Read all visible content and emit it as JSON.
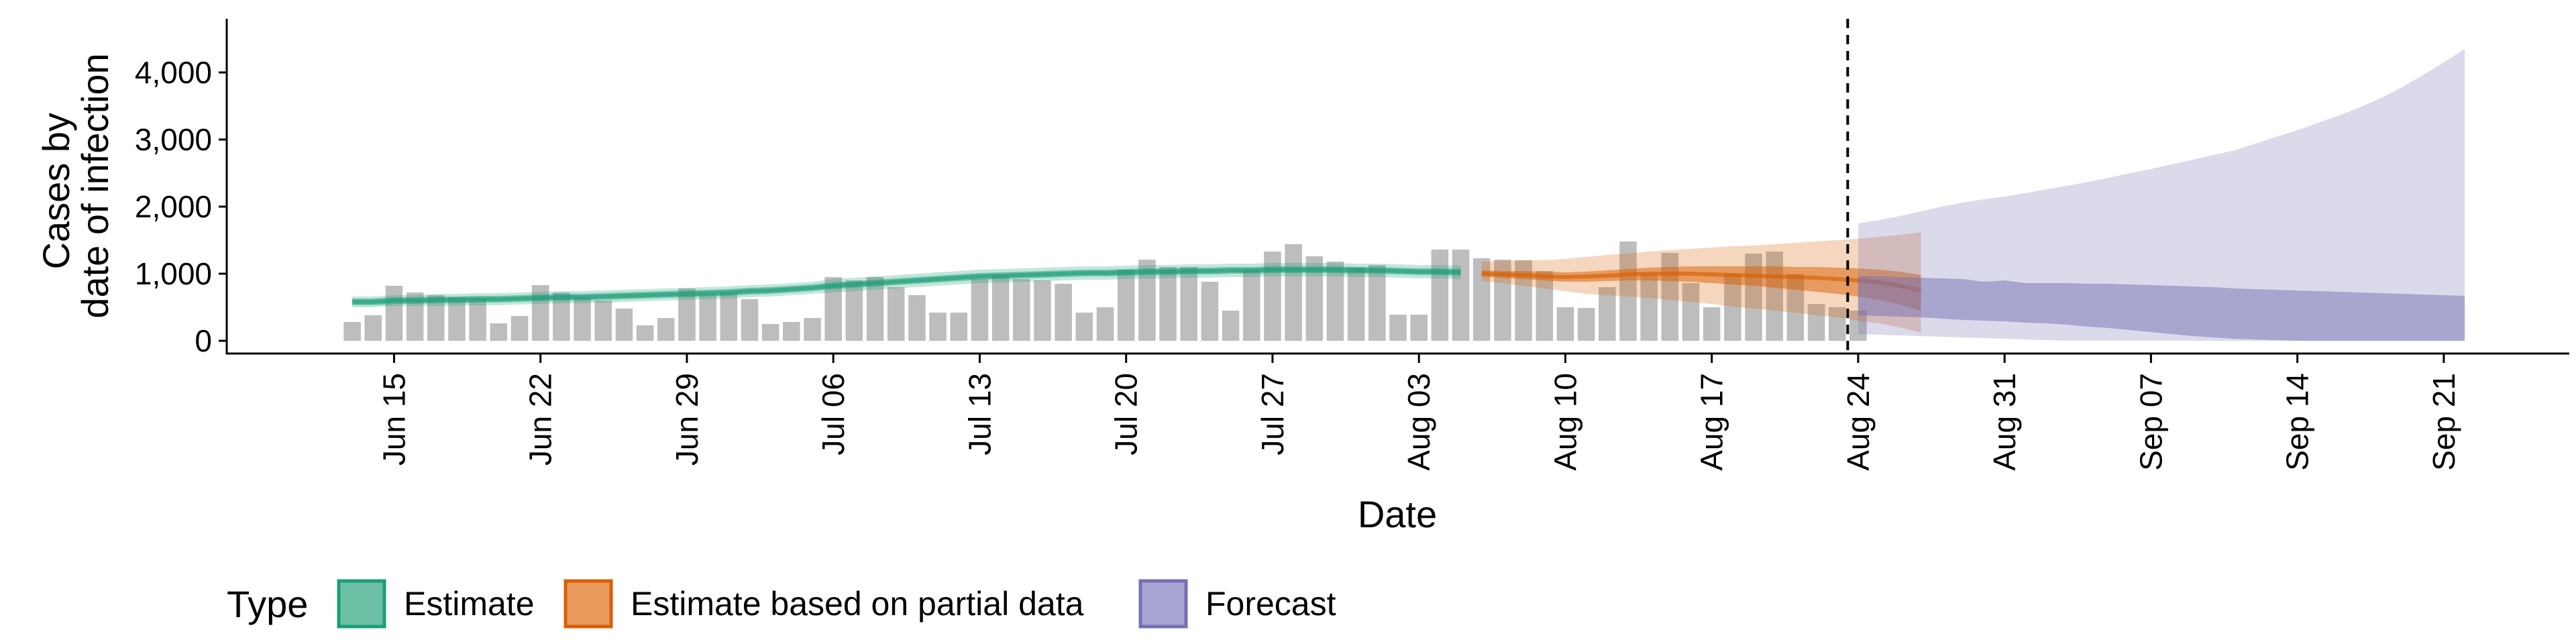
{
  "chart_data": {
    "type": "bar",
    "title": "",
    "xlabel": "Date",
    "ylabel_lines": [
      "Cases by",
      "date of infection"
    ],
    "ylim": [
      0,
      4800
    ],
    "yticks": [
      0,
      1000,
      2000,
      3000,
      4000
    ],
    "ytick_labels": [
      "0",
      "1,000",
      "2,000",
      "3,000",
      "4,000"
    ],
    "x_range": [
      "2020-06-07",
      "2020-09-27"
    ],
    "xticks": [
      "2020-06-15",
      "2020-06-22",
      "2020-06-29",
      "2020-07-06",
      "2020-07-13",
      "2020-07-20",
      "2020-07-27",
      "2020-08-03",
      "2020-08-10",
      "2020-08-17",
      "2020-08-24",
      "2020-08-31",
      "2020-09-07",
      "2020-09-14",
      "2020-09-21"
    ],
    "xtick_labels": [
      "Jun 15",
      "Jun 22",
      "Jun 29",
      "Jul 06",
      "Jul 13",
      "Jul 20",
      "Jul 27",
      "Aug 03",
      "Aug 10",
      "Aug 17",
      "Aug 24",
      "Aug 31",
      "Sep 07",
      "Sep 14",
      "Sep 21"
    ],
    "grid": false,
    "legend_position": "bottom-left",
    "legend_title": "Type",
    "colors": {
      "bars": "#bdbdbd",
      "estimate": "#1b9e77",
      "partial": "#d95f02",
      "forecast": "#7570b3",
      "cutoff_line": "#000000"
    },
    "bars": {
      "start_date": "2020-06-13",
      "values": [
        280,
        380,
        820,
        720,
        680,
        650,
        630,
        260,
        370,
        830,
        720,
        650,
        600,
        480,
        230,
        340,
        780,
        700,
        720,
        620,
        250,
        280,
        340,
        950,
        900,
        950,
        800,
        680,
        420,
        420,
        920,
        980,
        920,
        900,
        850,
        420,
        500,
        1060,
        1210,
        1100,
        1100,
        880,
        450,
        1060,
        1330,
        1440,
        1260,
        1180,
        1100,
        1130,
        390,
        390,
        1360,
        1360,
        1230,
        1210,
        1200,
        1040,
        500,
        490,
        800,
        1480,
        1000,
        1310,
        860,
        500,
        1000,
        1300,
        1330,
        1000,
        550,
        500,
        450
      ]
    },
    "cutoff_date": "2020-08-23",
    "series": [
      {
        "name": "Estimate",
        "start_date": "2020-06-13",
        "median": [
          580,
          580,
          600,
          600,
          610,
          610,
          620,
          620,
          630,
          640,
          650,
          650,
          660,
          670,
          680,
          690,
          700,
          710,
          720,
          740,
          750,
          770,
          790,
          820,
          840,
          860,
          880,
          900,
          920,
          940,
          960,
          970,
          980,
          990,
          1000,
          1010,
          1010,
          1020,
          1030,
          1030,
          1040,
          1040,
          1050,
          1050,
          1060,
          1060,
          1060,
          1060,
          1050,
          1050,
          1040,
          1030,
          1030,
          1020
        ],
        "lower50": [
          530,
          530,
          550,
          550,
          560,
          560,
          570,
          570,
          580,
          590,
          600,
          600,
          610,
          620,
          630,
          640,
          650,
          660,
          670,
          690,
          700,
          720,
          740,
          770,
          790,
          810,
          830,
          850,
          870,
          890,
          910,
          920,
          930,
          940,
          950,
          960,
          960,
          970,
          980,
          980,
          990,
          990,
          1000,
          1000,
          1010,
          1010,
          1010,
          1010,
          1000,
          1000,
          990,
          980,
          980,
          970
        ],
        "upper50": [
          630,
          630,
          650,
          650,
          660,
          660,
          670,
          670,
          680,
          690,
          700,
          700,
          710,
          720,
          730,
          740,
          750,
          760,
          770,
          790,
          800,
          820,
          840,
          870,
          890,
          910,
          930,
          950,
          970,
          990,
          1010,
          1020,
          1030,
          1040,
          1050,
          1060,
          1060,
          1070,
          1080,
          1080,
          1090,
          1090,
          1100,
          1100,
          1110,
          1110,
          1110,
          1110,
          1100,
          1100,
          1090,
          1080,
          1080,
          1070
        ],
        "lower90": [
          500,
          500,
          520,
          520,
          520,
          520,
          530,
          530,
          540,
          550,
          560,
          560,
          570,
          580,
          590,
          600,
          610,
          620,
          630,
          650,
          660,
          680,
          700,
          720,
          740,
          760,
          780,
          800,
          820,
          840,
          860,
          870,
          880,
          890,
          900,
          910,
          910,
          920,
          930,
          930,
          940,
          940,
          950,
          950,
          960,
          960,
          960,
          960,
          950,
          950,
          940,
          930,
          930,
          920
        ],
        "upper90": [
          660,
          660,
          680,
          680,
          700,
          700,
          710,
          710,
          720,
          730,
          740,
          740,
          750,
          760,
          770,
          780,
          790,
          800,
          810,
          830,
          840,
          860,
          880,
          920,
          940,
          960,
          980,
          1000,
          1020,
          1040,
          1060,
          1070,
          1080,
          1090,
          1100,
          1110,
          1110,
          1120,
          1130,
          1130,
          1140,
          1140,
          1150,
          1150,
          1160,
          1160,
          1160,
          1160,
          1150,
          1150,
          1140,
          1130,
          1130,
          1120
        ]
      },
      {
        "name": "Estimate based on partial data",
        "start_date": "2020-08-06",
        "median": [
          1000,
          990,
          980,
          960,
          950,
          960,
          970,
          990,
          1000,
          1000,
          1000,
          990,
          980,
          970,
          960,
          950,
          940,
          920,
          900,
          870,
          820,
          750
        ],
        "lower50": [
          960,
          940,
          920,
          900,
          880,
          880,
          890,
          900,
          900,
          890,
          880,
          860,
          840,
          820,
          790,
          760,
          730,
          700,
          660,
          610,
          540,
          450
        ],
        "upper50": [
          1050,
          1040,
          1040,
          1030,
          1020,
          1030,
          1050,
          1070,
          1090,
          1100,
          1110,
          1110,
          1110,
          1110,
          1110,
          1100,
          1100,
          1090,
          1080,
          1060,
          1030,
          980
        ],
        "lower90": [
          890,
          860,
          820,
          780,
          740,
          700,
          680,
          660,
          640,
          610,
          580,
          550,
          510,
          480,
          450,
          420,
          380,
          350,
          300,
          260,
          200,
          120
        ],
        "upper90": [
          1180,
          1190,
          1200,
          1200,
          1220,
          1250,
          1280,
          1300,
          1330,
          1350,
          1370,
          1390,
          1410,
          1420,
          1440,
          1460,
          1480,
          1500,
          1520,
          1550,
          1580,
          1620
        ]
      },
      {
        "name": "Forecast",
        "start_date": "2020-08-24",
        "lower50": [
          380,
          370,
          360,
          350,
          330,
          310,
          300,
          290,
          270,
          260,
          240,
          210,
          190,
          160,
          130,
          100,
          70,
          50,
          30,
          20,
          10,
          0,
          0,
          0,
          0,
          0,
          0,
          0,
          0,
          0
        ],
        "upper50": [
          960,
          960,
          950,
          940,
          930,
          920,
          880,
          900,
          860,
          860,
          860,
          850,
          850,
          840,
          830,
          820,
          810,
          800,
          780,
          770,
          760,
          750,
          740,
          730,
          720,
          710,
          700,
          690,
          680,
          670
        ],
        "lower90": [
          100,
          90,
          80,
          70,
          60,
          50,
          40,
          30,
          20,
          10,
          0,
          0,
          0,
          0,
          0,
          0,
          0,
          0,
          0,
          0,
          0,
          0,
          0,
          0,
          0,
          0,
          0,
          0,
          0,
          0
        ],
        "upper90": [
          1750,
          1800,
          1860,
          1930,
          2000,
          2060,
          2110,
          2150,
          2200,
          2260,
          2310,
          2370,
          2430,
          2500,
          2560,
          2630,
          2700,
          2770,
          2840,
          2940,
          3040,
          3140,
          3250,
          3360,
          3480,
          3620,
          3780,
          3960,
          4150,
          4350
        ]
      }
    ],
    "legend": [
      {
        "label": "Estimate",
        "color": "#1b9e77"
      },
      {
        "label": "Estimate based on partial data",
        "color": "#d95f02"
      },
      {
        "label": "Forecast",
        "color": "#7570b3"
      }
    ]
  }
}
